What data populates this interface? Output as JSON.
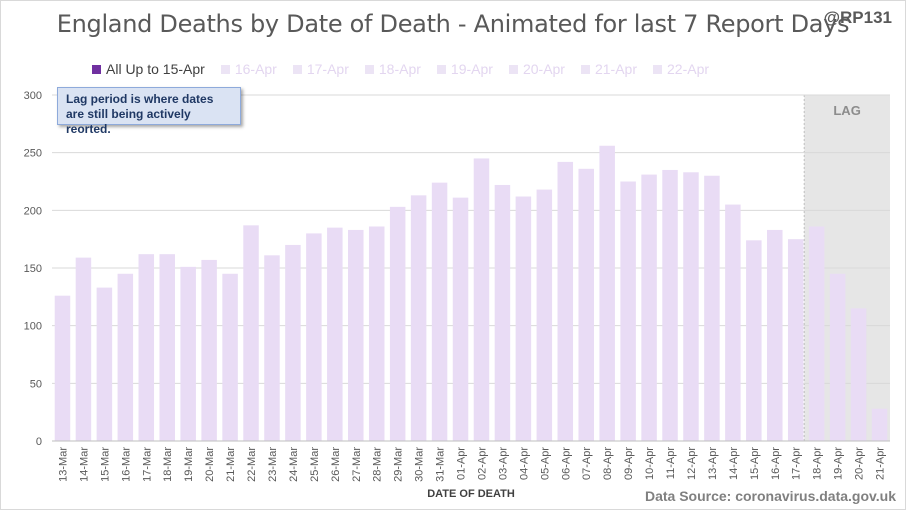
{
  "header": {
    "title": "England Deaths by Date of Death - Animated for last 7 Report Days",
    "handle": "@RP131"
  },
  "callout": {
    "text": "Lag period is where dates are still being actively reorted."
  },
  "source": "Data Source: coronavirus.data.gov.uk",
  "colors": {
    "bar": "#e9dcf5",
    "legend_active": "#7030a0",
    "legend_faded": "#ece4f5",
    "gridline": "#d9d9d9",
    "lag_band": "#e6e6e6"
  },
  "chart_data": {
    "type": "bar",
    "title": "England Deaths by Date of Death - Animated for last 7 Report Days",
    "xlabel": "DATE OF DEATH",
    "ylabel": "",
    "ylim": [
      0,
      300
    ],
    "yticks": [
      0,
      50,
      100,
      150,
      200,
      250,
      300
    ],
    "grid": true,
    "legend_position": "top",
    "legend": [
      "All Up to 15-Apr",
      "16-Apr",
      "17-Apr",
      "18-Apr",
      "19-Apr",
      "20-Apr",
      "21-Apr",
      "22-Apr"
    ],
    "categories": [
      "13-Mar",
      "14-Mar",
      "15-Mar",
      "16-Mar",
      "17-Mar",
      "18-Mar",
      "19-Mar",
      "20-Mar",
      "21-Mar",
      "22-Mar",
      "23-Mar",
      "24-Mar",
      "25-Mar",
      "26-Mar",
      "27-Mar",
      "28-Mar",
      "29-Mar",
      "30-Mar",
      "31-Mar",
      "01-Apr",
      "02-Apr",
      "03-Apr",
      "04-Apr",
      "05-Apr",
      "06-Apr",
      "07-Apr",
      "08-Apr",
      "09-Apr",
      "10-Apr",
      "11-Apr",
      "12-Apr",
      "13-Apr",
      "14-Apr",
      "15-Apr",
      "16-Apr",
      "17-Apr",
      "18-Apr",
      "19-Apr",
      "20-Apr",
      "21-Apr"
    ],
    "values": [
      126,
      159,
      133,
      145,
      162,
      162,
      151,
      157,
      145,
      187,
      161,
      170,
      180,
      185,
      183,
      186,
      203,
      213,
      224,
      211,
      245,
      222,
      212,
      218,
      242,
      236,
      256,
      225,
      231,
      235,
      233,
      230,
      205,
      174,
      183,
      175,
      186,
      145,
      115,
      28
    ],
    "annotations": [
      "LAG"
    ],
    "lag_start": "18-Apr"
  }
}
